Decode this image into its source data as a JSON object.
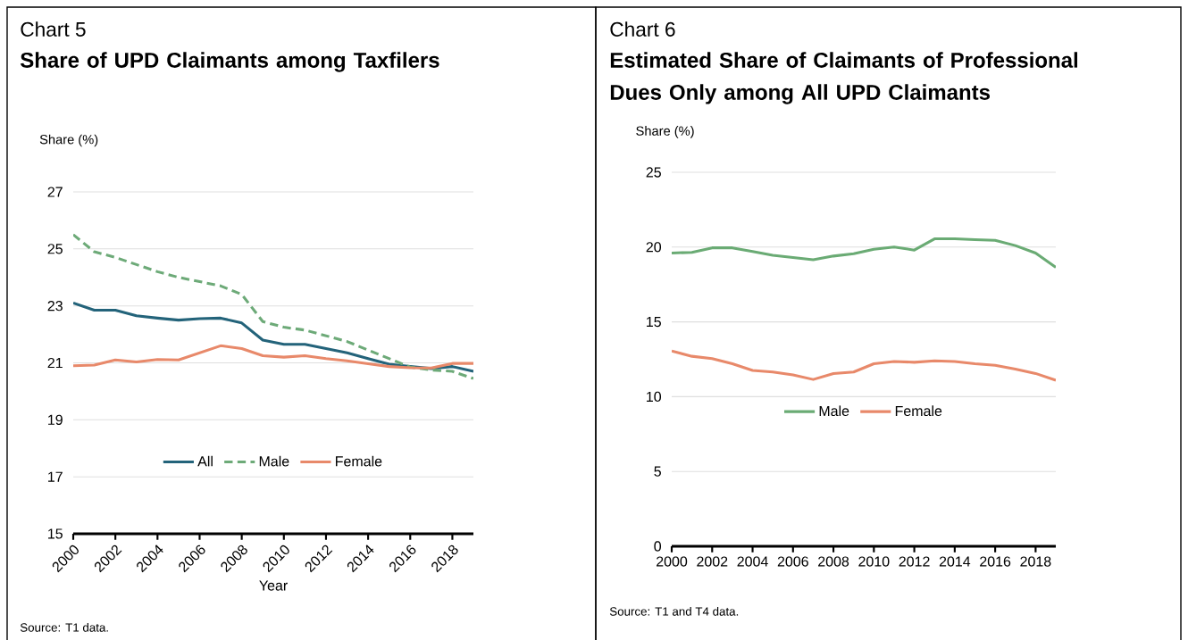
{
  "chart_data": [
    {
      "type": "line",
      "title": "Share of UPD Claimants among Taxfilers",
      "subtitle": "Chart 5",
      "xlabel": "Year",
      "ylabel": "Share (%)",
      "x": [
        2000,
        2001,
        2002,
        2003,
        2004,
        2005,
        2006,
        2007,
        2008,
        2009,
        2010,
        2011,
        2012,
        2013,
        2014,
        2015,
        2016,
        2017,
        2018,
        2019
      ],
      "series": [
        {
          "name": "All",
          "color": "#23637a",
          "values": [
            23.1,
            22.85,
            22.85,
            22.65,
            22.57,
            22.5,
            22.55,
            22.57,
            22.4,
            21.8,
            21.65,
            21.65,
            21.5,
            21.35,
            21.15,
            20.95,
            20.87,
            20.8,
            20.87,
            20.7
          ]
        },
        {
          "name": "Male",
          "color": "#6daa78",
          "line_style": "dashed",
          "values": [
            25.5,
            24.9,
            24.7,
            24.45,
            24.2,
            24.0,
            23.85,
            23.7,
            23.4,
            22.45,
            22.25,
            22.15,
            21.95,
            21.75,
            21.45,
            21.15,
            20.85,
            20.75,
            20.7,
            20.45
          ]
        },
        {
          "name": "Female",
          "color": "#e8896a",
          "values": [
            20.9,
            20.92,
            21.1,
            21.03,
            21.12,
            21.1,
            21.35,
            21.6,
            21.5,
            21.25,
            21.2,
            21.25,
            21.15,
            21.07,
            20.97,
            20.87,
            20.83,
            20.82,
            20.98,
            20.98
          ]
        }
      ],
      "xlim": [
        2000,
        2019
      ],
      "xticks": [
        2000,
        2002,
        2004,
        2006,
        2008,
        2010,
        2012,
        2014,
        2016,
        2018
      ],
      "ylim": [
        15,
        27
      ],
      "yticks": [
        15,
        17,
        19,
        21,
        23,
        25,
        27
      ],
      "grid": "y",
      "legend": "bottom",
      "line_style": "solid",
      "annotations": [
        "Source: T1 data."
      ]
    },
    {
      "type": "line",
      "title": "Estimated Share of Claimants of Professional Dues Only among All UPD Claimants",
      "subtitle": "Chart 6",
      "ylabel": "Share (%)",
      "x": [
        2000,
        2001,
        2002,
        2003,
        2004,
        2005,
        2006,
        2007,
        2008,
        2009,
        2010,
        2011,
        2012,
        2013,
        2014,
        2015,
        2016,
        2017,
        2018,
        2019
      ],
      "series": [
        {
          "name": "Male",
          "color": "#6aab74",
          "values": [
            19.6,
            19.65,
            19.95,
            19.95,
            19.7,
            19.45,
            19.3,
            19.15,
            19.4,
            19.55,
            19.85,
            20.0,
            19.8,
            20.55,
            20.55,
            20.5,
            20.45,
            20.1,
            19.6,
            18.65
          ]
        },
        {
          "name": "Female",
          "color": "#e8896a",
          "values": [
            13.05,
            12.7,
            12.55,
            12.2,
            11.75,
            11.65,
            11.45,
            11.15,
            11.55,
            11.65,
            12.2,
            12.35,
            12.3,
            12.4,
            12.35,
            12.2,
            12.1,
            11.85,
            11.55,
            11.1
          ]
        }
      ],
      "xlim": [
        2000,
        2019
      ],
      "xticks": [
        2000,
        2002,
        2004,
        2006,
        2008,
        2010,
        2012,
        2014,
        2016,
        2018
      ],
      "ylim": [
        0,
        25
      ],
      "yticks": [
        0,
        5,
        10,
        15,
        20,
        25
      ],
      "grid": "y",
      "legend": "bottom",
      "line_style": "solid",
      "annotations": [
        "Source: T1 and T4 data."
      ]
    }
  ]
}
